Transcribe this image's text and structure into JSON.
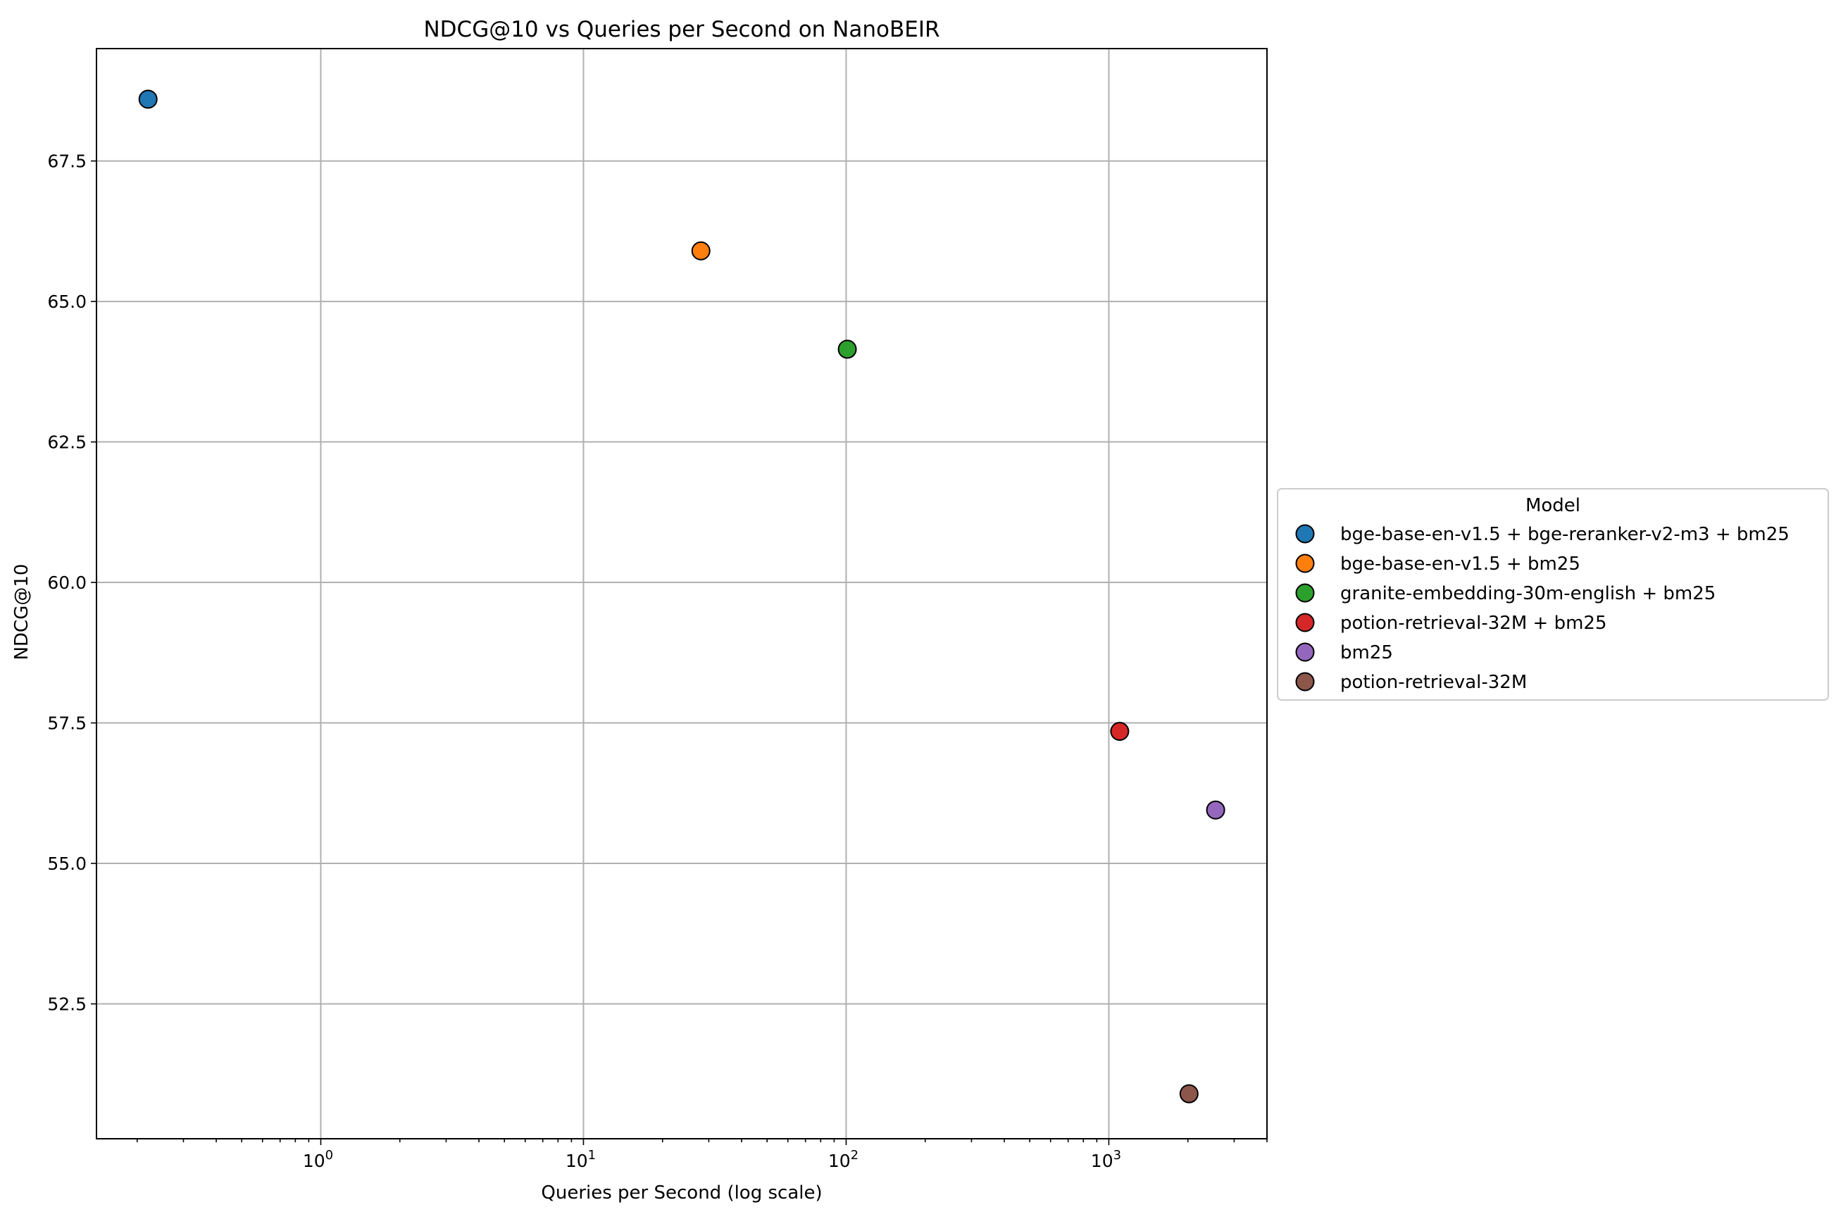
{
  "chart_data": {
    "type": "scatter",
    "title": "NDCG@10 vs Queries per Second on NanoBEIR",
    "xlabel": "Queries per Second (log scale)",
    "ylabel": "NDCG@10",
    "x_scale": "log",
    "xlim": [
      0.14,
      4000
    ],
    "ylim": [
      50.1,
      69.5
    ],
    "x_ticks": [
      {
        "value": 1,
        "base": "10",
        "exp": "0"
      },
      {
        "value": 10,
        "base": "10",
        "exp": "1"
      },
      {
        "value": 100,
        "base": "10",
        "exp": "2"
      },
      {
        "value": 1000,
        "base": "10",
        "exp": "3"
      }
    ],
    "y_ticks": [
      {
        "value": 52.5,
        "label": "52.5"
      },
      {
        "value": 55.0,
        "label": "55.0"
      },
      {
        "value": 57.5,
        "label": "57.5"
      },
      {
        "value": 60.0,
        "label": "60.0"
      },
      {
        "value": 62.5,
        "label": "62.5"
      },
      {
        "value": 65.0,
        "label": "65.0"
      },
      {
        "value": 67.5,
        "label": "67.5"
      }
    ],
    "grid": true,
    "legend": {
      "title": "Model",
      "placement": "outside-right"
    },
    "series": [
      {
        "name": "bge-base-en-v1.5 + bge-reranker-v2-m3 + bm25",
        "color": "#1f77b4",
        "x": 0.22,
        "y": 68.6
      },
      {
        "name": "bge-base-en-v1.5 + bm25",
        "color": "#ff7f0e",
        "x": 28,
        "y": 65.9
      },
      {
        "name": "granite-embedding-30m-english + bm25",
        "color": "#2ca02c",
        "x": 101,
        "y": 64.15
      },
      {
        "name": "potion-retrieval-32M + bm25",
        "color": "#d62728",
        "x": 1100,
        "y": 57.35
      },
      {
        "name": "bm25",
        "color": "#9467bd",
        "x": 2550,
        "y": 55.95
      },
      {
        "name": "potion-retrieval-32M",
        "color": "#8c564b",
        "x": 2020,
        "y": 50.9
      }
    ]
  }
}
